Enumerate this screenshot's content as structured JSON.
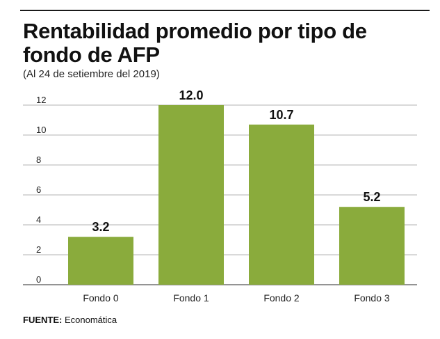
{
  "header": {
    "title": "Rentabilidad promedio por tipo de fondo de AFP",
    "subtitle": "(Al 24 de setiembre del 2019)"
  },
  "footer": {
    "source_label": "FUENTE:",
    "source_value": "Economática"
  },
  "colors": {
    "bar": "#8aab3c",
    "grid": "#9a9a9a",
    "text": "#111111"
  },
  "chart_data": {
    "type": "bar",
    "title": "Rentabilidad promedio por tipo de fondo de AFP",
    "subtitle": "(Al 24 de setiembre del 2019)",
    "categories": [
      "Fondo 0",
      "Fondo 1",
      "Fondo 2",
      "Fondo 3"
    ],
    "values": [
      3.2,
      12.0,
      10.7,
      5.2
    ],
    "value_labels": [
      "3.2",
      "12.0",
      "10.7",
      "5.2"
    ],
    "xlabel": "",
    "ylabel": "",
    "ylim": [
      0,
      12
    ],
    "yticks": [
      0,
      2,
      4,
      6,
      8,
      10,
      12
    ],
    "grid": true,
    "legend": "none"
  }
}
